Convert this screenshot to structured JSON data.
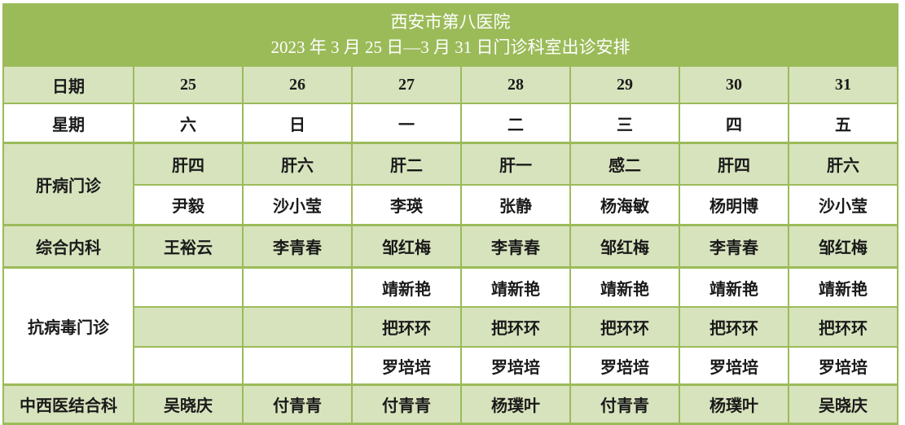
{
  "title": {
    "line1": "西安市第八医院",
    "line2": "2023 年 3 月 25 日—3 月 31 日门诊科室出诊安排"
  },
  "colors": {
    "header_green": "#9BBB59",
    "row_light_green": "#D7E3BD",
    "row_white": "#FFFFFF",
    "border_green": "#9BBB59",
    "title_text": "#FFFFFF",
    "body_text": "#1A1A1A"
  },
  "table": {
    "header_rows": [
      {
        "label": "日期",
        "shade": "green",
        "values": [
          "25",
          "26",
          "27",
          "28",
          "29",
          "30",
          "31"
        ]
      },
      {
        "label": "星期",
        "shade": "white",
        "values": [
          "六",
          "日",
          "一",
          "二",
          "三",
          "四",
          "五"
        ]
      }
    ],
    "sections": [
      {
        "department": "肝病门诊",
        "department_shade": "green",
        "rows": [
          {
            "shade": "green",
            "values": [
              "肝四",
              "肝六",
              "肝二",
              "肝一",
              "感二",
              "肝四",
              "肝六"
            ]
          },
          {
            "shade": "white",
            "values": [
              "尹毅",
              "沙小莹",
              "李瑛",
              "张静",
              "杨海敏",
              "杨明博",
              "沙小莹"
            ]
          }
        ]
      },
      {
        "department": "综合内科",
        "department_shade": "green",
        "rows": [
          {
            "shade": "green",
            "values": [
              "王裕云",
              "李青春",
              "邹红梅",
              "李青春",
              "邹红梅",
              "李青春",
              "邹红梅"
            ]
          }
        ]
      },
      {
        "department": "抗病毒门诊",
        "department_shade": "white",
        "rows": [
          {
            "shade": "white",
            "values": [
              "",
              "",
              "靖新艳",
              "靖新艳",
              "靖新艳",
              "靖新艳",
              "靖新艳"
            ]
          },
          {
            "shade": "green",
            "values": [
              "",
              "",
              "把环环",
              "把环环",
              "把环环",
              "把环环",
              "把环环"
            ]
          },
          {
            "shade": "white",
            "values": [
              "",
              "",
              "罗培培",
              "罗培培",
              "罗培培",
              "罗培培",
              "罗培培"
            ]
          }
        ]
      },
      {
        "department": "中西医结合科",
        "department_shade": "green",
        "rows": [
          {
            "shade": "green",
            "values": [
              "吴晓庆",
              "付青青",
              "付青青",
              "杨璞叶",
              "付青青",
              "杨璞叶",
              "吴晓庆"
            ]
          }
        ]
      }
    ]
  }
}
